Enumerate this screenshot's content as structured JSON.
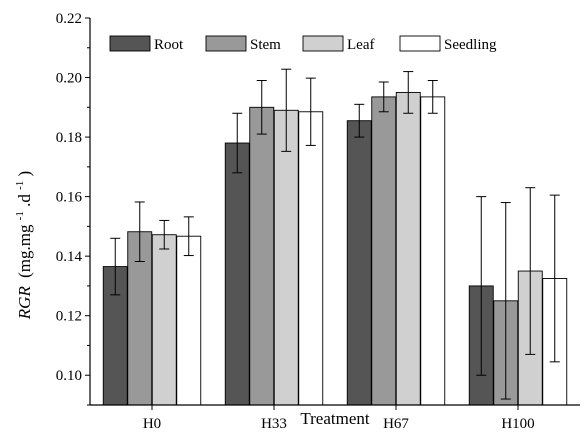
{
  "chart_data": {
    "type": "bar",
    "categories": [
      "H0",
      "H33",
      "H67",
      "H100"
    ],
    "xlabel": "Treatment",
    "ylabel": {
      "italic": "RGR",
      "unit": "(mg.mg",
      "sup1": "-1",
      "mid": ".d",
      "sup2": "-1",
      "end": ")"
    },
    "ylim": [
      0.09,
      0.22
    ],
    "yticks": [
      "0.10",
      "0.12",
      "0.14",
      "0.16",
      "0.18",
      "0.20",
      "0.22"
    ],
    "legend_position": "top",
    "series": [
      {
        "name": "Root",
        "color": "#555555",
        "values": [
          0.1365,
          0.178,
          0.1855,
          0.13
        ],
        "errors": [
          0.0095,
          0.01,
          0.0055,
          0.03
        ]
      },
      {
        "name": "Stem",
        "color": "#999999",
        "values": [
          0.1482,
          0.19,
          0.1935,
          0.125
        ],
        "errors": [
          0.01,
          0.009,
          0.005,
          0.033
        ]
      },
      {
        "name": "Leaf",
        "color": "#d0d0d0",
        "values": [
          0.1472,
          0.189,
          0.195,
          0.135
        ],
        "errors": [
          0.0048,
          0.0138,
          0.007,
          0.028
        ]
      },
      {
        "name": "Seedling",
        "color": "#ffffff",
        "values": [
          0.1467,
          0.1885,
          0.1935,
          0.1325
        ],
        "errors": [
          0.0065,
          0.0113,
          0.0055,
          0.028
        ]
      }
    ]
  }
}
